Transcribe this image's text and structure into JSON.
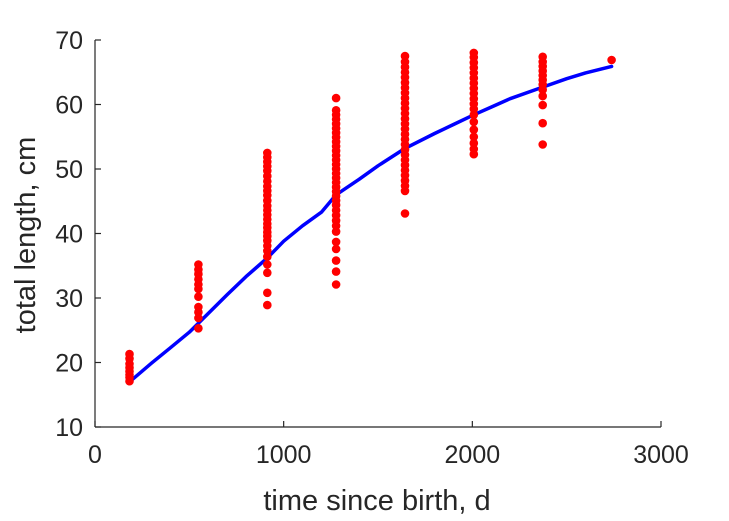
{
  "chart_data": {
    "type": "scatter",
    "title": "",
    "xlabel": "time since birth, d",
    "ylabel": "total length, cm",
    "xlim": [
      0,
      3000
    ],
    "ylim": [
      10,
      70
    ],
    "x_ticks": [
      "0",
      "1000",
      "2000",
      "3000"
    ],
    "y_ticks": [
      "10",
      "20",
      "30",
      "40",
      "50",
      "60",
      "70"
    ],
    "grid": false,
    "legend": "none",
    "colors": {
      "points": "#ff0000",
      "curve": "#0000ff",
      "axis": "#262626"
    },
    "series": [
      {
        "type": "scatter",
        "points": [
          {
            "x": 183,
            "y": 17.1
          },
          {
            "x": 183,
            "y": 17.7
          },
          {
            "x": 183,
            "y": 18.1
          },
          {
            "x": 183,
            "y": 18.6
          },
          {
            "x": 183,
            "y": 19.2
          },
          {
            "x": 183,
            "y": 19.8
          },
          {
            "x": 183,
            "y": 20.6
          },
          {
            "x": 183,
            "y": 21.3
          },
          {
            "x": 548,
            "y": 25.3
          },
          {
            "x": 548,
            "y": 26.9
          },
          {
            "x": 548,
            "y": 27.8
          },
          {
            "x": 548,
            "y": 28.6
          },
          {
            "x": 548,
            "y": 30.2
          },
          {
            "x": 548,
            "y": 31.4
          },
          {
            "x": 548,
            "y": 32.1
          },
          {
            "x": 548,
            "y": 32.9
          },
          {
            "x": 548,
            "y": 33.7
          },
          {
            "x": 548,
            "y": 34.4
          },
          {
            "x": 548,
            "y": 35.2
          },
          {
            "x": 913,
            "y": 28.9
          },
          {
            "x": 913,
            "y": 30.8
          },
          {
            "x": 913,
            "y": 33.9
          },
          {
            "x": 913,
            "y": 35.2
          },
          {
            "x": 913,
            "y": 36.4
          },
          {
            "x": 913,
            "y": 37.3
          },
          {
            "x": 913,
            "y": 38.1
          },
          {
            "x": 913,
            "y": 38.9
          },
          {
            "x": 913,
            "y": 39.6
          },
          {
            "x": 913,
            "y": 40.2
          },
          {
            "x": 913,
            "y": 40.9
          },
          {
            "x": 913,
            "y": 41.5
          },
          {
            "x": 913,
            "y": 42.2
          },
          {
            "x": 913,
            "y": 42.9
          },
          {
            "x": 913,
            "y": 43.6
          },
          {
            "x": 913,
            "y": 44.3
          },
          {
            "x": 913,
            "y": 45.1
          },
          {
            "x": 913,
            "y": 45.9
          },
          {
            "x": 913,
            "y": 46.6
          },
          {
            "x": 913,
            "y": 47.3
          },
          {
            "x": 913,
            "y": 48.1
          },
          {
            "x": 913,
            "y": 48.9
          },
          {
            "x": 913,
            "y": 49.7
          },
          {
            "x": 913,
            "y": 50.4
          },
          {
            "x": 913,
            "y": 51.1
          },
          {
            "x": 913,
            "y": 51.8
          },
          {
            "x": 913,
            "y": 52.5
          },
          {
            "x": 1278,
            "y": 32.1
          },
          {
            "x": 1278,
            "y": 34.1
          },
          {
            "x": 1278,
            "y": 35.8
          },
          {
            "x": 1278,
            "y": 37.6
          },
          {
            "x": 1278,
            "y": 38.7
          },
          {
            "x": 1278,
            "y": 40.3
          },
          {
            "x": 1278,
            "y": 41.2
          },
          {
            "x": 1278,
            "y": 42.0
          },
          {
            "x": 1278,
            "y": 42.8
          },
          {
            "x": 1278,
            "y": 43.6
          },
          {
            "x": 1278,
            "y": 44.4
          },
          {
            "x": 1278,
            "y": 45.1
          },
          {
            "x": 1278,
            "y": 45.8
          },
          {
            "x": 1278,
            "y": 46.5
          },
          {
            "x": 1278,
            "y": 47.2
          },
          {
            "x": 1278,
            "y": 47.9
          },
          {
            "x": 1278,
            "y": 48.6
          },
          {
            "x": 1278,
            "y": 49.3
          },
          {
            "x": 1278,
            "y": 50.0
          },
          {
            "x": 1278,
            "y": 50.7
          },
          {
            "x": 1278,
            "y": 51.4
          },
          {
            "x": 1278,
            "y": 52.1
          },
          {
            "x": 1278,
            "y": 52.8
          },
          {
            "x": 1278,
            "y": 53.5
          },
          {
            "x": 1278,
            "y": 54.2
          },
          {
            "x": 1278,
            "y": 54.9
          },
          {
            "x": 1278,
            "y": 55.6
          },
          {
            "x": 1278,
            "y": 56.3
          },
          {
            "x": 1278,
            "y": 57.0
          },
          {
            "x": 1278,
            "y": 57.7
          },
          {
            "x": 1278,
            "y": 58.4
          },
          {
            "x": 1278,
            "y": 59.1
          },
          {
            "x": 1278,
            "y": 61.0
          },
          {
            "x": 1643,
            "y": 43.1
          },
          {
            "x": 1643,
            "y": 46.6
          },
          {
            "x": 1643,
            "y": 47.4
          },
          {
            "x": 1643,
            "y": 48.2
          },
          {
            "x": 1643,
            "y": 49.0
          },
          {
            "x": 1643,
            "y": 49.8
          },
          {
            "x": 1643,
            "y": 50.6
          },
          {
            "x": 1643,
            "y": 51.4
          },
          {
            "x": 1643,
            "y": 52.2
          },
          {
            "x": 1643,
            "y": 53.0
          },
          {
            "x": 1643,
            "y": 53.8
          },
          {
            "x": 1643,
            "y": 54.6
          },
          {
            "x": 1643,
            "y": 55.4
          },
          {
            "x": 1643,
            "y": 56.2
          },
          {
            "x": 1643,
            "y": 57.0
          },
          {
            "x": 1643,
            "y": 57.8
          },
          {
            "x": 1643,
            "y": 58.6
          },
          {
            "x": 1643,
            "y": 59.4
          },
          {
            "x": 1643,
            "y": 60.2
          },
          {
            "x": 1643,
            "y": 61.0
          },
          {
            "x": 1643,
            "y": 61.8
          },
          {
            "x": 1643,
            "y": 62.6
          },
          {
            "x": 1643,
            "y": 63.4
          },
          {
            "x": 1643,
            "y": 64.2
          },
          {
            "x": 1643,
            "y": 65.0
          },
          {
            "x": 1643,
            "y": 65.8
          },
          {
            "x": 1643,
            "y": 66.6
          },
          {
            "x": 1643,
            "y": 67.5
          },
          {
            "x": 2008,
            "y": 52.3
          },
          {
            "x": 2008,
            "y": 53.1
          },
          {
            "x": 2008,
            "y": 54.0
          },
          {
            "x": 2008,
            "y": 55.0
          },
          {
            "x": 2008,
            "y": 56.1
          },
          {
            "x": 2008,
            "y": 57.3
          },
          {
            "x": 2008,
            "y": 58.4
          },
          {
            "x": 2008,
            "y": 59.3
          },
          {
            "x": 2008,
            "y": 60.1
          },
          {
            "x": 2008,
            "y": 60.9
          },
          {
            "x": 2008,
            "y": 61.7
          },
          {
            "x": 2008,
            "y": 62.5
          },
          {
            "x": 2008,
            "y": 63.3
          },
          {
            "x": 2008,
            "y": 64.1
          },
          {
            "x": 2008,
            "y": 64.9
          },
          {
            "x": 2008,
            "y": 65.7
          },
          {
            "x": 2008,
            "y": 66.5
          },
          {
            "x": 2008,
            "y": 67.3
          },
          {
            "x": 2008,
            "y": 68.0
          },
          {
            "x": 2373,
            "y": 53.8
          },
          {
            "x": 2373,
            "y": 57.1
          },
          {
            "x": 2373,
            "y": 59.9
          },
          {
            "x": 2373,
            "y": 61.3
          },
          {
            "x": 2373,
            "y": 62.3
          },
          {
            "x": 2373,
            "y": 63.1
          },
          {
            "x": 2373,
            "y": 63.8
          },
          {
            "x": 2373,
            "y": 64.5
          },
          {
            "x": 2373,
            "y": 65.2
          },
          {
            "x": 2373,
            "y": 65.9
          },
          {
            "x": 2373,
            "y": 66.6
          },
          {
            "x": 2373,
            "y": 67.4
          },
          {
            "x": 2738,
            "y": 66.9
          }
        ]
      },
      {
        "type": "line",
        "points": [
          {
            "x": 183,
            "y": 17.0
          },
          {
            "x": 300,
            "y": 19.9
          },
          {
            "x": 400,
            "y": 22.3
          },
          {
            "x": 500,
            "y": 24.7
          },
          {
            "x": 600,
            "y": 27.6
          },
          {
            "x": 700,
            "y": 30.5
          },
          {
            "x": 800,
            "y": 33.3
          },
          {
            "x": 913,
            "y": 36.2
          },
          {
            "x": 1000,
            "y": 38.8
          },
          {
            "x": 1100,
            "y": 41.2
          },
          {
            "x": 1200,
            "y": 43.3
          },
          {
            "x": 1278,
            "y": 46.0
          },
          {
            "x": 1400,
            "y": 48.4
          },
          {
            "x": 1500,
            "y": 50.5
          },
          {
            "x": 1643,
            "y": 53.2
          },
          {
            "x": 1800,
            "y": 55.5
          },
          {
            "x": 1900,
            "y": 56.9
          },
          {
            "x": 2008,
            "y": 58.4
          },
          {
            "x": 2100,
            "y": 59.6
          },
          {
            "x": 2200,
            "y": 60.9
          },
          {
            "x": 2373,
            "y": 62.7
          },
          {
            "x": 2500,
            "y": 64.0
          },
          {
            "x": 2600,
            "y": 64.9
          },
          {
            "x": 2738,
            "y": 65.9
          }
        ]
      }
    ]
  }
}
